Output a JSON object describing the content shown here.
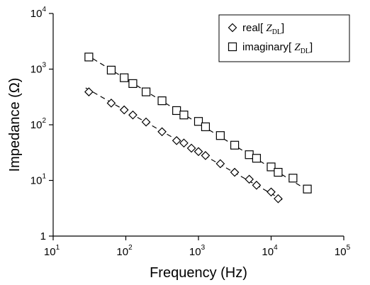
{
  "chart_data": {
    "type": "scatter",
    "xlabel": "Frequency (Hz)",
    "ylabel": "Impedance (Ω)",
    "x_scale": "log",
    "y_scale": "log",
    "xlim": [
      10,
      100000
    ],
    "ylim": [
      1,
      10000
    ],
    "x_ticks": [
      {
        "base": "10",
        "exp": "1",
        "value": 10
      },
      {
        "base": "10",
        "exp": "2",
        "value": 100
      },
      {
        "base": "10",
        "exp": "3",
        "value": 1000
      },
      {
        "base": "10",
        "exp": "4",
        "value": 10000
      },
      {
        "base": "10",
        "exp": "5",
        "value": 100000
      }
    ],
    "y_ticks": [
      {
        "base": "1",
        "exp": "",
        "value": 1
      },
      {
        "base": "10",
        "exp": "1",
        "value": 10
      },
      {
        "base": "10",
        "exp": "2",
        "value": 100
      },
      {
        "base": "10",
        "exp": "3",
        "value": 1000
      },
      {
        "base": "10",
        "exp": "4",
        "value": 10000
      }
    ],
    "grid": false,
    "legend_position": "top-right",
    "series": [
      {
        "name": "real[ Z_DL]",
        "legend_prefix": "real[",
        "legend_symbol": "Z",
        "legend_subscript": "DL",
        "legend_suffix": "]",
        "marker": "diamond",
        "points": [
          [
            31,
            390
          ],
          [
            63,
            245
          ],
          [
            95,
            185
          ],
          [
            125,
            150
          ],
          [
            190,
            112
          ],
          [
            315,
            75
          ],
          [
            500,
            52
          ],
          [
            630,
            47
          ],
          [
            800,
            38
          ],
          [
            1000,
            33
          ],
          [
            1250,
            28
          ],
          [
            2000,
            20
          ],
          [
            3150,
            14
          ],
          [
            5000,
            10.5
          ],
          [
            6300,
            8.2
          ],
          [
            10000,
            6.2
          ],
          [
            12500,
            4.7
          ]
        ],
        "fit_line": [
          [
            28,
            460
          ],
          [
            15500,
            4.2
          ]
        ]
      },
      {
        "name": "imaginary[ Z_DL]",
        "legend_prefix": "imaginary[",
        "legend_symbol": "Z",
        "legend_subscript": "DL",
        "legend_suffix": "]",
        "marker": "square",
        "points": [
          [
            31,
            1650
          ],
          [
            63,
            960
          ],
          [
            95,
            700
          ],
          [
            125,
            550
          ],
          [
            190,
            390
          ],
          [
            315,
            270
          ],
          [
            500,
            180
          ],
          [
            630,
            150
          ],
          [
            1000,
            115
          ],
          [
            1250,
            92
          ],
          [
            2000,
            64
          ],
          [
            3150,
            43
          ],
          [
            5000,
            29
          ],
          [
            6300,
            25
          ],
          [
            10000,
            17.5
          ],
          [
            12500,
            14
          ],
          [
            20000,
            11
          ],
          [
            31500,
            7
          ]
        ],
        "fit_line": [
          [
            28,
            1850
          ],
          [
            34000,
            6.3
          ]
        ]
      }
    ]
  }
}
